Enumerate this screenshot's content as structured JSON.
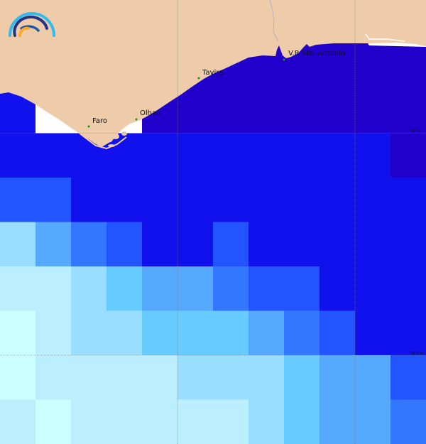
{
  "map": {
    "palette": [
      "#2200cc",
      "#1111ee",
      "#2255ff",
      "#3377ff",
      "#55aaff",
      "#66ccff",
      "#99ddff",
      "#bbeeff",
      "#ccffff"
    ],
    "land_color": "#eeccaa",
    "nodata_color": "#ffffff",
    "grid_levels": [
      [
        0,
        0,
        0,
        0,
        0,
        0,
        0,
        0,
        0,
        0,
        0,
        0
      ],
      [
        0,
        0,
        0,
        0,
        0,
        0,
        0,
        0,
        0,
        0,
        0,
        0
      ],
      [
        1,
        null,
        null,
        null,
        0,
        0,
        0,
        0,
        0,
        0,
        0,
        0
      ],
      [
        1,
        1,
        1,
        1,
        1,
        1,
        1,
        1,
        1,
        1,
        1,
        0
      ],
      [
        2,
        2,
        1,
        1,
        1,
        1,
        1,
        1,
        1,
        1,
        1,
        1
      ],
      [
        6,
        4,
        3,
        2,
        1,
        1,
        2,
        1,
        1,
        1,
        1,
        1
      ],
      [
        7,
        7,
        6,
        5,
        4,
        4,
        3,
        2,
        2,
        1,
        1,
        1
      ],
      [
        8,
        7,
        6,
        6,
        5,
        5,
        5,
        4,
        3,
        2,
        1,
        1
      ],
      [
        8,
        7,
        7,
        7,
        7,
        6,
        6,
        6,
        5,
        4,
        4,
        2
      ],
      [
        7,
        8,
        7,
        7,
        7,
        7,
        7,
        6,
        5,
        4,
        4,
        3
      ]
    ],
    "towns": [
      {
        "name": "Faro"
      },
      {
        "name": "Olhao"
      },
      {
        "name": "Tavira"
      },
      {
        "name": "V.R Sto. Antonio"
      }
    ],
    "lat_labels": [
      "37°N",
      "36.5°N"
    ],
    "logo_icon": "wave-arcs-logo"
  }
}
